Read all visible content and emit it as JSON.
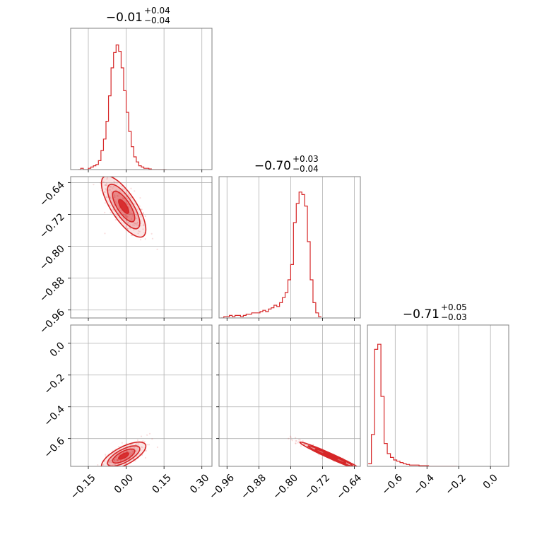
{
  "chart_data": {
    "type": "corner",
    "color": "#d62728",
    "grid": true,
    "titles": [
      {
        "median": "−0.01",
        "plus": "+0.04",
        "minus": "−0.04"
      },
      {
        "median": "−0.70",
        "plus": "+0.03",
        "minus": "−0.04"
      },
      {
        "median": "−0.71",
        "plus": "+0.05",
        "minus": "−0.03"
      }
    ],
    "params": [
      {
        "range": [
          -0.22,
          0.34
        ],
        "ticks": [
          -0.15,
          0.0,
          0.15,
          0.3
        ],
        "tick_labels": [
          "−0.15",
          "0.00",
          "0.15",
          "0.30"
        ]
      },
      {
        "range": [
          -0.98,
          -0.625
        ],
        "ticks": [
          -0.96,
          -0.88,
          -0.8,
          -0.72,
          -0.64
        ],
        "tick_labels": [
          "−0.96",
          "−0.88",
          "−0.80",
          "−0.72",
          "−0.64"
        ]
      },
      {
        "range": [
          -0.775,
          0.115
        ],
        "ticks": [
          -0.6,
          -0.4,
          -0.2,
          0.0
        ],
        "tick_labels": [
          "−0.6",
          "−0.4",
          "−0.2",
          "0.0"
        ]
      }
    ],
    "histograms": [
      {
        "bin_start": -0.19,
        "bin_width": 0.01,
        "values": [
          0,
          0.01,
          0,
          0,
          0.01,
          0.02,
          0.03,
          0.04,
          0.07,
          0.15,
          0.24,
          0.38,
          0.58,
          0.8,
          0.92,
          0.98,
          0.93,
          0.8,
          0.62,
          0.45,
          0.3,
          0.18,
          0.1,
          0.06,
          0.03,
          0.02,
          0.01,
          0.01,
          0.005,
          0,
          0,
          0,
          0,
          0,
          0
        ]
      },
      {
        "bin_start": -0.975,
        "bin_width": 0.007,
        "values": [
          0,
          0.01,
          0.01,
          0.02,
          0.01,
          0.02,
          0.02,
          0.01,
          0.02,
          0.03,
          0.03,
          0.04,
          0.04,
          0.04,
          0.05,
          0.06,
          0.05,
          0.07,
          0.08,
          0.1,
          0.09,
          0.12,
          0.16,
          0.2,
          0.3,
          0.42,
          0.75,
          0.9,
          0.99,
          0.97,
          0.88,
          0.6,
          0.3,
          0.12,
          0.04,
          0.01
        ]
      },
      {
        "bin_start": -0.77,
        "bin_width": 0.02,
        "values": [
          0.02,
          0.25,
          0.92,
          0.96,
          0.55,
          0.18,
          0.1,
          0.07,
          0.05,
          0.04,
          0.03,
          0.02,
          0.015,
          0.01,
          0.01,
          0.01,
          0.005,
          0.005,
          0.005,
          0,
          0,
          0,
          0,
          0,
          0,
          0,
          0,
          0
        ]
      }
    ],
    "joint": [
      {
        "pair": [
          0,
          1
        ],
        "mean": [
          -0.01,
          -0.7
        ],
        "std": [
          0.04,
          0.035
        ],
        "rho": -0.75
      },
      {
        "pair": [
          0,
          2
        ],
        "mean": [
          -0.01,
          -0.71
        ],
        "std": [
          0.04,
          0.04
        ],
        "rho": 0.7
      },
      {
        "pair": [
          1,
          2
        ],
        "mean": [
          -0.7,
          -0.71
        ],
        "std": [
          0.035,
          0.04
        ],
        "rho": -0.98
      }
    ]
  }
}
